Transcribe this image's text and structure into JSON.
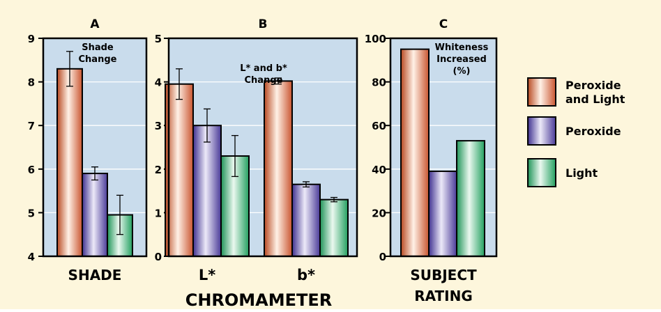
{
  "colors": {
    "background": "#fdf6dc",
    "plot_background": "#c9dcec",
    "peroxide_and_light": "#d9633a",
    "peroxide": "#5a4aa0",
    "light": "#2fae6a"
  },
  "chart_data": [
    {
      "type": "bar",
      "panel": "A",
      "title": "A",
      "annotation": [
        "Shade",
        "Change"
      ],
      "xlabel": "SHADE",
      "ylim": [
        4,
        9
      ],
      "yticks": [
        "4",
        "5",
        "6",
        "7",
        "8",
        "9"
      ],
      "categories": [
        ""
      ],
      "series": [
        {
          "name": "Peroxide and Light",
          "values": [
            8.3
          ],
          "error": [
            0.4
          ]
        },
        {
          "name": "Peroxide",
          "values": [
            5.9
          ],
          "error": [
            0.15
          ]
        },
        {
          "name": "Light",
          "values": [
            4.95
          ],
          "error": [
            0.45
          ]
        }
      ],
      "grid": true
    },
    {
      "type": "bar",
      "panel": "B",
      "title": "B",
      "annotation": [
        "L* and b*",
        "Change"
      ],
      "xlabel": "CHROMAMETER",
      "ylim": [
        0,
        5
      ],
      "yticks": [
        "0",
        "1",
        "2",
        "3",
        "4",
        "5"
      ],
      "categories": [
        "L*",
        "b*"
      ],
      "series": [
        {
          "name": "Peroxide and Light",
          "values": [
            3.95,
            4.02
          ],
          "error": [
            0.35,
            0.07
          ]
        },
        {
          "name": "Peroxide",
          "values": [
            3.0,
            1.65
          ],
          "error": [
            0.38,
            0.06
          ]
        },
        {
          "name": "Light",
          "values": [
            2.3,
            1.3
          ],
          "error": [
            0.47,
            0.05
          ]
        }
      ],
      "grid": true
    },
    {
      "type": "bar",
      "panel": "C",
      "title": "C",
      "annotation": [
        "Whiteness",
        "Increased",
        "(%)"
      ],
      "xlabel": [
        "SUBJECT",
        "RATING"
      ],
      "ylim": [
        0,
        100
      ],
      "yticks": [
        "0",
        "20",
        "40",
        "60",
        "80",
        "100"
      ],
      "categories": [
        ""
      ],
      "series": [
        {
          "name": "Peroxide and Light",
          "values": [
            95
          ]
        },
        {
          "name": "Peroxide",
          "values": [
            39
          ]
        },
        {
          "name": "Light",
          "values": [
            53
          ]
        }
      ],
      "grid": true
    }
  ],
  "legend": {
    "position": "right",
    "items": [
      {
        "lines": [
          "Peroxide",
          "and Light"
        ]
      },
      {
        "lines": [
          "Peroxide"
        ]
      },
      {
        "lines": [
          "Light"
        ]
      }
    ]
  }
}
